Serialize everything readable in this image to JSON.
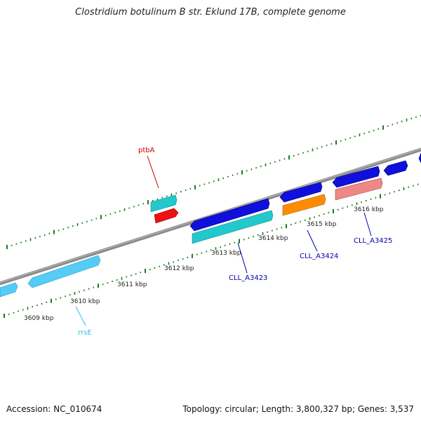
{
  "title": "Clostridium botulinum B str. Eklund 17B, complete genome",
  "footer": {
    "accession": "Accession: NC_010674",
    "topology": "Topology: circular; Length: 3,800,327 bp; Genes: 3,537"
  },
  "scale_labels": [
    "3609 kbp",
    "3610 kbp",
    "3611 kbp",
    "3612 kbp",
    "3613 kbp",
    "3614 kbp",
    "3615 kbp",
    "3616 kbp"
  ],
  "gene_labels": [
    {
      "name": "ptbA",
      "color": "#cc0000"
    },
    {
      "name": "rrsE",
      "color": "#33bbee"
    },
    {
      "name": "CLL_A3423",
      "color": "#0000aa"
    },
    {
      "name": "CLL_A3424",
      "color": "#0000aa"
    },
    {
      "name": "CLL_A3425",
      "color": "#0000aa"
    }
  ],
  "colors": {
    "backbone": "#8c8c8c",
    "ticks": "#1a7a1a",
    "cds_blue": "#1010dd",
    "cds_cyan": "#22c8cc",
    "rrna": "#55ccf5",
    "orange": "#ff8c00",
    "pink": "#ee8888",
    "red": "#ee1111"
  }
}
